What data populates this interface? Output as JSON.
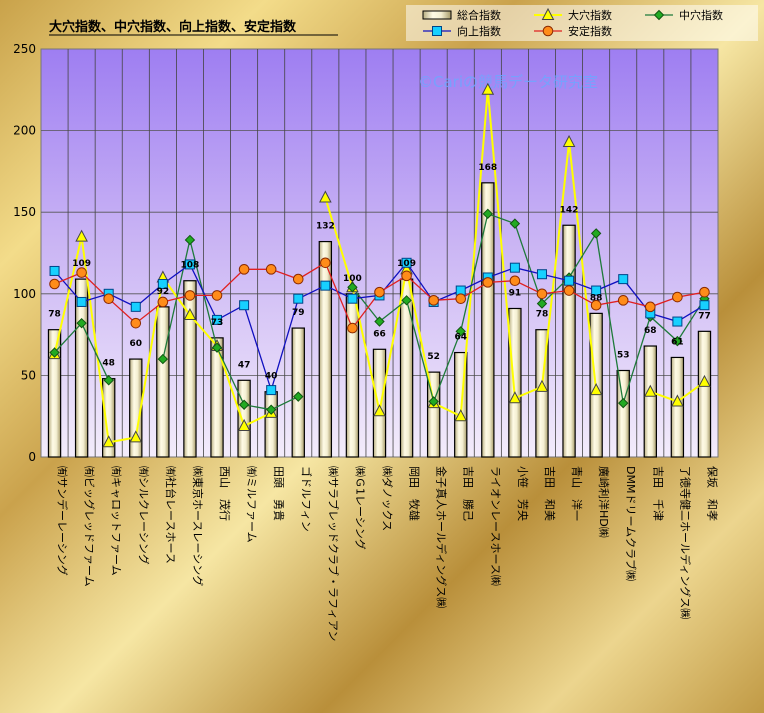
{
  "chart_data": {
    "type": "bar",
    "title": "大穴指数、中穴指数、向上指数、安定指数",
    "watermark": "©Cariの競馬データ研究室",
    "ylim": [
      0,
      250
    ],
    "yticks": [
      0,
      50,
      100,
      150,
      200,
      250
    ],
    "grid": true,
    "legend_position": "top-right",
    "categories": [
      "㈲サンデーレーシング",
      "㈲ビッグレッドファーム",
      "㈲キャロットファーム",
      "㈲シルクレーシング",
      "㈲社台レースホース",
      "㈱東京ホースレーシング",
      "西山　茂行",
      "㈲ミルファーム",
      "田頭　勇貴",
      "ゴドルフィン",
      "㈱サラブレッドクラブ・ラフィアン",
      "㈱Ｇ1レーシング",
      "㈱ダノックス",
      "岡田　牧雄",
      "金子真人ホールディングス㈱",
      "吉田　勝己",
      "ライオンレースホース㈱",
      "小笹　芳央",
      "吉田　和美",
      "青山　洋一",
      "廣崎利洋HD㈱",
      "DMMドリームクラブ㈱",
      "吉田　千津",
      "了徳寺健二ホールディングス㈱",
      "保坂　和孝"
    ],
    "series": [
      {
        "name": "総合指数",
        "type": "bar",
        "color": "#f0ecd0",
        "values": [
          78,
          109,
          48,
          60,
          92,
          108,
          73,
          47,
          40,
          79,
          132,
          100,
          66,
          109,
          52,
          64,
          168,
          91,
          78,
          142,
          88,
          53,
          68,
          61,
          77
        ]
      },
      {
        "name": "大穴指数",
        "type": "line",
        "color": "#ffff00",
        "values": [
          63,
          135,
          9,
          12,
          110,
          87,
          68,
          19,
          27,
          null,
          159,
          104,
          28,
          115,
          33,
          25,
          225,
          36,
          43,
          193,
          41,
          null,
          40,
          34,
          46
        ]
      },
      {
        "name": "中穴指数",
        "type": "line",
        "color": "#1e7a3a",
        "values": [
          64,
          82,
          47,
          null,
          60,
          133,
          67,
          32,
          29,
          37,
          null,
          104,
          83,
          96,
          34,
          77,
          149,
          143,
          94,
          110,
          137,
          33,
          86,
          71,
          97
        ]
      },
      {
        "name": "向上指数",
        "type": "line",
        "color": "#1010c0",
        "values": [
          114,
          95,
          100,
          92,
          106,
          118,
          84,
          93,
          41,
          97,
          105,
          97,
          99,
          119,
          95,
          102,
          110,
          116,
          112,
          108,
          102,
          109,
          88,
          83,
          93
        ]
      },
      {
        "name": "安定指数",
        "type": "line",
        "color": "#e02020",
        "values": [
          106,
          113,
          97,
          82,
          95,
          99,
          99,
          115,
          115,
          109,
          119,
          79,
          101,
          111,
          96,
          97,
          107,
          108,
          100,
          102,
          93,
          96,
          92,
          98,
          101
        ]
      }
    ]
  }
}
